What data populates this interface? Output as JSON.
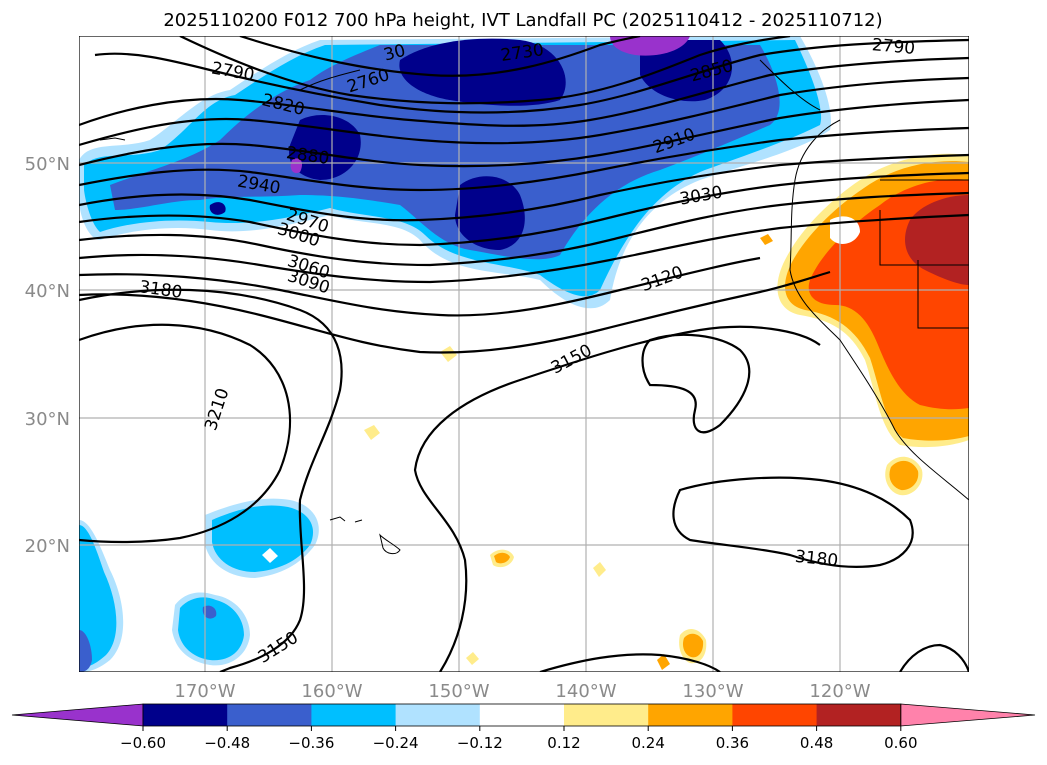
{
  "title": "2025110200 F012 700 hPa height, IVT Landfall PC (2025110412 - 2025110712)",
  "map": {
    "lat_labels": [
      "50°N",
      "40°N",
      "30°N",
      "20°N"
    ],
    "lon_labels": [
      "170°W",
      "160°W",
      "150°W",
      "140°W",
      "130°W",
      "120°W"
    ],
    "contour_labels": [
      "2730",
      "2760",
      "2790",
      "2790",
      "2820",
      "2850",
      "2880",
      "2910",
      "2940",
      "2970",
      "3000",
      "3030",
      "3060",
      "3090",
      "3120",
      "3150",
      "3150",
      "3180",
      "3180",
      "3210",
      "30"
    ]
  },
  "colorbar": {
    "ticks": [
      "−0.60",
      "−0.48",
      "−0.36",
      "−0.24",
      "−0.12",
      "0.12",
      "0.24",
      "0.36",
      "0.48",
      "0.60"
    ],
    "colors": [
      "#9932cc",
      "#00008b",
      "#3a5fcd",
      "#00bfff",
      "#b0e2ff",
      "#ffffff",
      "#ffec8b",
      "#ffa500",
      "#ff4500",
      "#b22222",
      "#ff82ab"
    ]
  },
  "colors": {
    "deep_neg": "#00008b",
    "mid_neg": "#3a5fcd",
    "light_neg": "#00bfff",
    "pale_neg": "#b0e2ff",
    "purple": "#9932cc",
    "yellow": "#ffec8b",
    "orange": "#ffa500",
    "red_orange": "#ff4500",
    "dark_red": "#b22222"
  }
}
